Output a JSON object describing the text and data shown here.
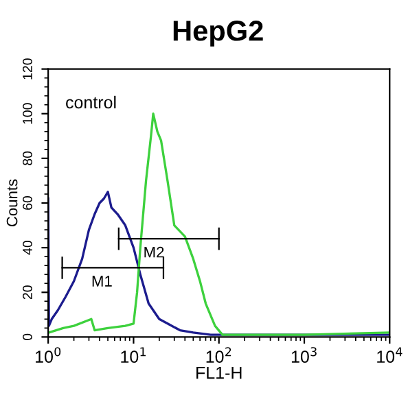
{
  "chart_data": {
    "type": "line",
    "title": "HepG2",
    "xlabel": "FL1-H",
    "ylabel": "Counts",
    "log": "x",
    "xlim": [
      1,
      10000
    ],
    "ylim": [
      0,
      120
    ],
    "xticks": [
      {
        "value": 1,
        "label": "10$^{0}$"
      },
      {
        "value": 10,
        "label": "10$^{1}$"
      },
      {
        "value": 100,
        "label": "10$^{2}$"
      },
      {
        "value": 1000,
        "label": "10$^{3}$"
      },
      {
        "value": 10000,
        "label": "10$^{4}$"
      }
    ],
    "yticks": [
      0,
      20,
      40,
      60,
      80,
      100,
      120
    ],
    "grid": false,
    "legend": false,
    "series": [
      {
        "color": "#1c1c8e",
        "x": [
          1.0,
          1.02,
          1.1,
          1.3,
          1.6,
          2.0,
          2.5,
          3.0,
          3.5,
          4.0,
          4.5,
          5.0,
          5.5,
          6.5,
          8,
          10,
          12,
          15,
          20,
          25,
          35,
          50,
          80,
          150,
          1000,
          10000
        ],
        "values": [
          62,
          5,
          8,
          12,
          18,
          25,
          35,
          48,
          55,
          60,
          62,
          65,
          58,
          55,
          50,
          40,
          28,
          15,
          8,
          6,
          3,
          2,
          1,
          1,
          1,
          1
        ]
      },
      {
        "color": "#3dd13d",
        "x": [
          1.02,
          1.5,
          2,
          3.2,
          3.5,
          5,
          8,
          10,
          11,
          12,
          14,
          16,
          17,
          19,
          21,
          25,
          30,
          40,
          50,
          60,
          70,
          90,
          110,
          1000,
          10000
        ],
        "values": [
          2,
          4,
          5,
          8,
          3,
          4,
          5,
          6,
          20,
          40,
          70,
          90,
          100,
          92,
          88,
          70,
          50,
          45,
          35,
          25,
          15,
          5,
          1,
          1,
          2
        ]
      },
      {
        "color": "#000000",
        "x": [
          1.46,
          22.4
        ],
        "values": [
          31,
          31
        ],
        "errors": [
          5,
          5
        ]
      },
      {
        "color": "#000000",
        "x": [
          6.7,
          100
        ],
        "values": [
          44,
          44
        ],
        "errors": [
          5,
          5
        ]
      }
    ],
    "annotations": [
      "control",
      {
        "text": "M1",
        "x": 3.2,
        "y": 31
      },
      {
        "text": "M2",
        "x": 13,
        "y": 44
      }
    ]
  }
}
